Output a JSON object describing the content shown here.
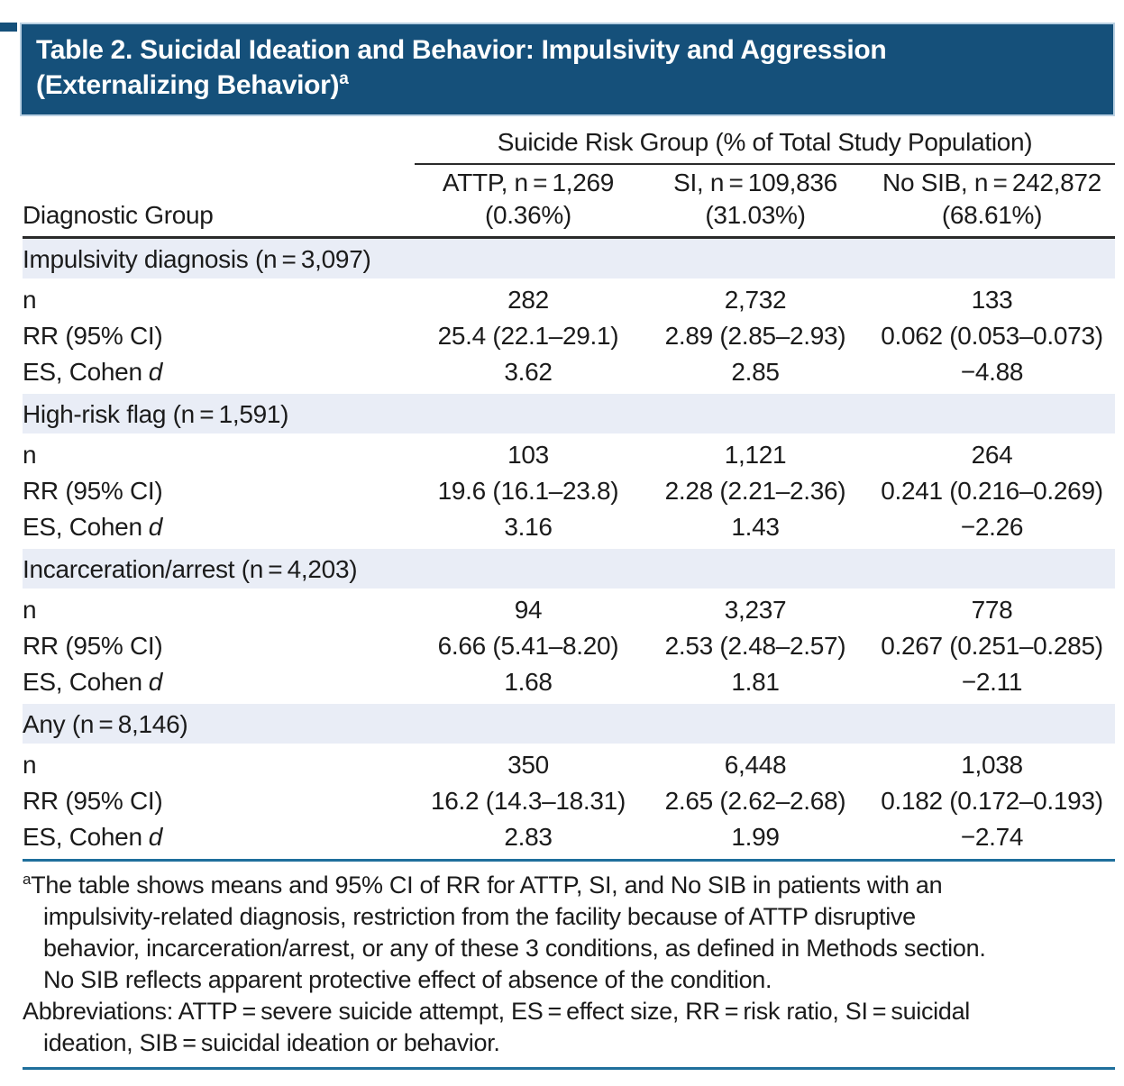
{
  "colors": {
    "navy": "#15507a",
    "title_border": "#b9d0e2",
    "band": "#e9edf6",
    "teal_rule": "#1f6f9c",
    "text": "#1b1b1b"
  },
  "table": {
    "title_line1": "Table 2. Suicidal Ideation and Behavior: Impulsivity and Aggression",
    "title_line2": "(Externalizing Behavior)",
    "title_superscript": "a",
    "spanner_heading": "Suicide Risk Group (% of Total Study Population)",
    "stub_header": "Diagnostic Group",
    "column_headers": [
      {
        "line1": "ATTP, n = 1,269",
        "line2": "(0.36%)"
      },
      {
        "line1": "SI, n = 109,836",
        "line2": "(31.03%)"
      },
      {
        "line1": "No SIB, n = 242,872",
        "line2": "(68.61%)"
      }
    ],
    "row_labels": {
      "n": "n",
      "rr": "RR (95% CI)",
      "es_prefix": "ES, Cohen",
      "es_italic": "d"
    },
    "sections": [
      {
        "name": "Impulsivity diagnosis (n = 3,097)",
        "n": [
          "282",
          "2,732",
          "133"
        ],
        "rr": [
          "25.4 (22.1–29.1)",
          "2.89 (2.85–2.93)",
          "0.062 (0.053–0.073)"
        ],
        "es": [
          "3.62",
          "2.85",
          "−4.88"
        ]
      },
      {
        "name": "High-risk flag (n = 1,591)",
        "n": [
          "103",
          "1,121",
          "264"
        ],
        "rr": [
          "19.6 (16.1–23.8)",
          "2.28 (2.21–2.36)",
          "0.241 (0.216–0.269)"
        ],
        "es": [
          "3.16",
          "1.43",
          "−2.26"
        ]
      },
      {
        "name": "Incarceration/arrest (n = 4,203)",
        "n": [
          "94",
          "3,237",
          "778"
        ],
        "rr": [
          "6.66 (5.41–8.20)",
          "2.53 (2.48–2.57)",
          "0.267 (0.251–0.285)"
        ],
        "es": [
          "1.68",
          "1.81",
          "−2.11"
        ]
      },
      {
        "name": "Any (n = 8,146)",
        "n": [
          "350",
          "6,448",
          "1,038"
        ],
        "rr": [
          "16.2 (14.3–18.31)",
          "2.65 (2.62–2.68)",
          "0.182 (0.172–0.193)"
        ],
        "es": [
          "2.83",
          "1.99",
          "−2.74"
        ]
      }
    ]
  },
  "footnotes": {
    "marker": "a",
    "line1": "The table shows means and 95% CI of RR for ATTP, SI, and No SIB in patients with an",
    "line2": "impulsivity-related diagnosis, restriction from the facility because of ATTP disruptive",
    "line3": "behavior, incarceration/arrest, or any of these 3 conditions, as defined in Methods section.",
    "line4": "No SIB reflects apparent protective effect of absence of the condition.",
    "abbrev_line1": "Abbreviations: ATTP = severe suicide attempt, ES = effect size, RR = risk ratio, SI = suicidal",
    "abbrev_line2": "ideation, SIB = suicidal ideation or behavior."
  }
}
